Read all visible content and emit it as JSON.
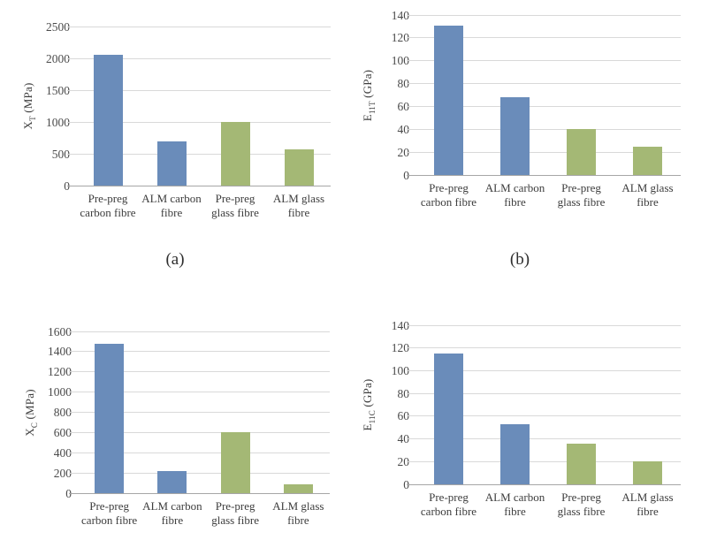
{
  "page": {
    "background": "#ffffff"
  },
  "colors": {
    "bar_blue": "#6a8cba",
    "bar_green": "#a4b875",
    "gridline": "#d9d9d9",
    "axis_line": "#a6a6a6",
    "text": "#3d3d3d"
  },
  "chart_data": [
    {
      "id": "a",
      "type": "bar",
      "caption": "(a)",
      "ylabel": {
        "main": "X",
        "sub": "T",
        "unit": " (MPa)"
      },
      "categories": [
        "Pre-preg carbon fibre",
        "ALM carbon fibre",
        "Pre-preg glass fibre",
        "ALM glass fibre"
      ],
      "values": [
        2050,
        700,
        1000,
        570
      ],
      "ylim": [
        0,
        2500
      ],
      "yticks": [
        0,
        500,
        1000,
        1500,
        2000,
        2500
      ],
      "bar_colors": [
        "#6a8cba",
        "#6a8cba",
        "#a4b875",
        "#a4b875"
      ],
      "grid": true,
      "legend": "none"
    },
    {
      "id": "b",
      "type": "bar",
      "caption": "(b)",
      "ylabel": {
        "main": "E",
        "sub": "11T",
        "unit": " (GPa)"
      },
      "categories": [
        "Pre-preg carbon fibre",
        "ALM carbon fibre",
        "Pre-preg glass fibre",
        "ALM glass fibre"
      ],
      "values": [
        131,
        68,
        40,
        25
      ],
      "ylim": [
        0,
        140
      ],
      "yticks": [
        0,
        20,
        40,
        60,
        80,
        100,
        120,
        140
      ],
      "bar_colors": [
        "#6a8cba",
        "#6a8cba",
        "#a4b875",
        "#a4b875"
      ],
      "grid": true,
      "legend": "none"
    },
    {
      "id": "c",
      "type": "bar",
      "caption": "",
      "ylabel": {
        "main": "X",
        "sub": "C",
        "unit": " (MPa)"
      },
      "categories": [
        "Pre-preg carbon fibre",
        "ALM carbon fibre",
        "Pre-preg glass fibre",
        "ALM glass fibre"
      ],
      "values": [
        1480,
        220,
        600,
        90
      ],
      "ylim": [
        0,
        1600
      ],
      "yticks": [
        0,
        200,
        400,
        600,
        800,
        1000,
        1200,
        1400,
        1600
      ],
      "bar_colors": [
        "#6a8cba",
        "#6a8cba",
        "#a4b875",
        "#a4b875"
      ],
      "grid": true,
      "legend": "none"
    },
    {
      "id": "d",
      "type": "bar",
      "caption": "",
      "ylabel": {
        "main": "E",
        "sub": "11C",
        "unit": " (GPa)"
      },
      "categories": [
        "Pre-preg carbon fibre",
        "ALM carbon fibre",
        "Pre-preg glass fibre",
        "ALM glass fibre"
      ],
      "values": [
        115,
        53,
        36,
        20
      ],
      "ylim": [
        0,
        140
      ],
      "yticks": [
        0,
        20,
        40,
        60,
        80,
        100,
        120,
        140
      ],
      "bar_colors": [
        "#6a8cba",
        "#6a8cba",
        "#a4b875",
        "#a4b875"
      ],
      "grid": true,
      "legend": "none"
    }
  ]
}
